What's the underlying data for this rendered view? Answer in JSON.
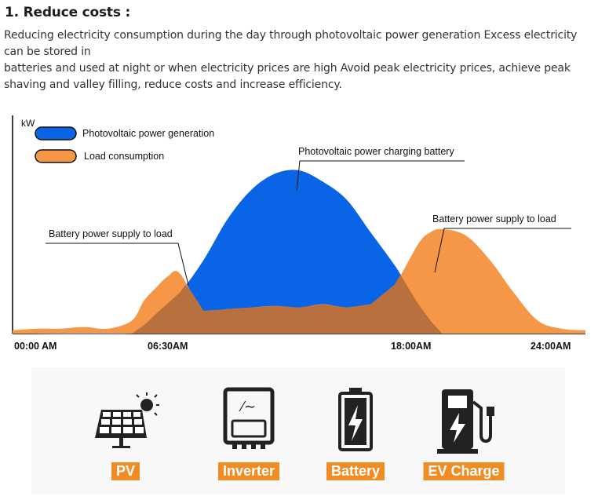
{
  "heading": "1. Reduce costs :",
  "paragraph": [
    "Reducing electricity consumption during the day through photovoltaic power generation Excess electricity can be stored in",
    "batteries and used at night or when electricity prices are high Avoid peak electricity prices, achieve peak shaving and valley filling, reduce costs and increase efficiency."
  ],
  "chart_data": {
    "type": "area",
    "ylabel": "kW",
    "x_tick_labels": [
      "00:00 AM",
      "06:30AM",
      "18:00AM",
      "24:00AM"
    ],
    "legend": [
      {
        "name": "Photovoltaic power generation",
        "color": "#0a64e6"
      },
      {
        "name": "Load consumption",
        "color": "#f59746"
      }
    ],
    "legend_position": "top-left",
    "annotations": [
      "Photovoltaic power charging battery",
      "Battery power supply to load",
      "Battery power supply to load"
    ],
    "colors": {
      "pv": "#0a64e6",
      "load": "#f59746",
      "overlap": "#b8703f"
    },
    "grid": false,
    "ylim": [
      0,
      1
    ],
    "series": [
      {
        "name": "Photovoltaic power generation",
        "x": [
          0,
          5,
          5.5,
          6,
          7,
          8,
          9,
          10,
          11,
          12,
          13,
          14,
          15,
          16,
          16.5,
          17,
          17.5,
          18
        ],
        "values": [
          0,
          0,
          0.05,
          0.12,
          0.25,
          0.45,
          0.7,
          0.88,
          0.98,
          1.0,
          0.93,
          0.82,
          0.62,
          0.42,
          0.3,
          0.18,
          0.08,
          0
        ]
      },
      {
        "name": "Load consumption",
        "x": [
          0,
          1,
          2,
          3,
          4,
          5,
          5.5,
          6,
          6.5,
          7,
          8,
          9,
          10,
          11,
          12,
          13,
          14,
          15,
          16,
          17,
          17.5,
          18,
          19,
          20,
          21,
          22,
          23,
          24
        ],
        "values": [
          0.02,
          0.03,
          0.03,
          0.04,
          0.03,
          0.08,
          0.2,
          0.28,
          0.35,
          0.37,
          0.14,
          0.15,
          0.16,
          0.17,
          0.16,
          0.18,
          0.16,
          0.18,
          0.3,
          0.55,
          0.62,
          0.64,
          0.6,
          0.45,
          0.25,
          0.08,
          0.03,
          0.02
        ]
      }
    ]
  },
  "icons": [
    {
      "label": "PV",
      "icon": "solar-panel-icon"
    },
    {
      "label": "Inverter",
      "icon": "inverter-icon"
    },
    {
      "label": "Battery",
      "icon": "battery-icon"
    },
    {
      "label": "EV Charge",
      "icon": "ev-charger-icon"
    }
  ]
}
